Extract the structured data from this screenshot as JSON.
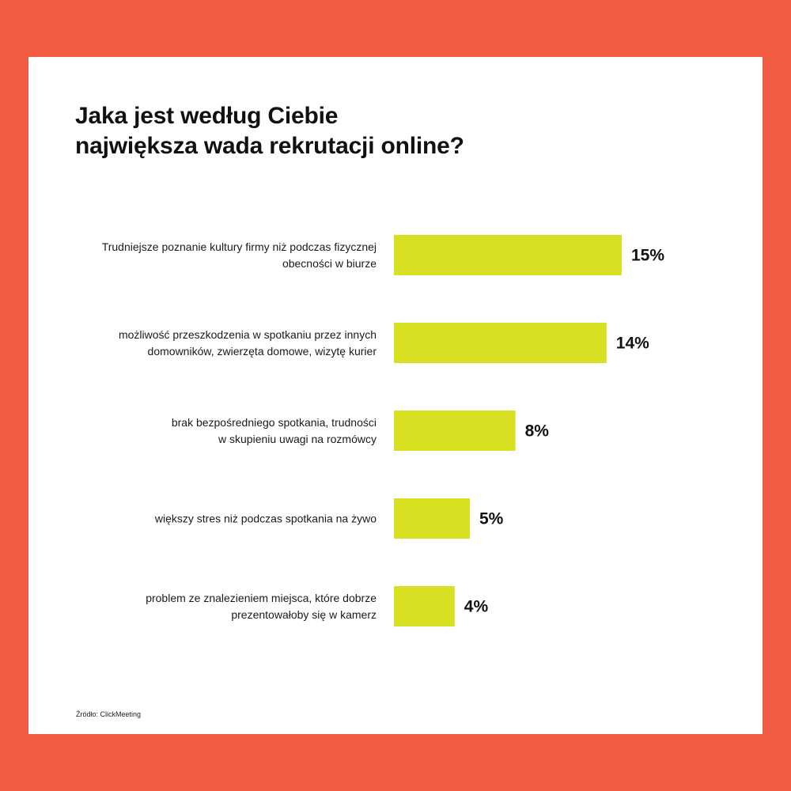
{
  "title_line1": "Jaka jest według Ciebie",
  "title_line2": "największa wada rekrutacji online?",
  "source": "Źródło: ClickMeeting",
  "colors": {
    "background": "#f25c43",
    "card": "#ffffff",
    "bar": "#d8e022",
    "text": "#111111"
  },
  "chart_data": {
    "type": "bar",
    "orientation": "horizontal",
    "categories": [
      [
        "Trudniejsze poznanie kultury firmy niż podczas fizycznej",
        "obecności w biurze"
      ],
      [
        "możliwość przeszkodzenia w spotkaniu przez innych",
        "domowników, zwierzęta domowe, wizytę kurier"
      ],
      [
        "brak bezpośredniego spotkania, trudności",
        "w skupieniu uwagi na rozmówcy"
      ],
      [
        "większy stres niż podczas spotkania na żywo"
      ],
      [
        "problem ze znalezieniem miejsca, które dobrze",
        "prezentowałoby się w kamerz"
      ]
    ],
    "values": [
      15,
      14,
      8,
      5,
      4
    ],
    "value_labels": [
      "15%",
      "14%",
      "8%",
      "5%",
      "4%"
    ],
    "unit": "%",
    "xlim": [
      0,
      15
    ],
    "grid": false,
    "legend": "none"
  }
}
